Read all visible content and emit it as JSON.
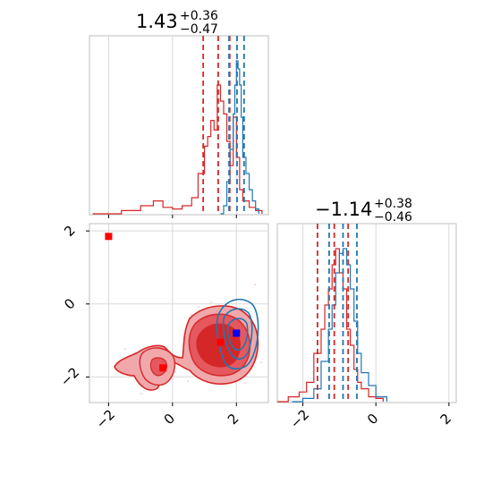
{
  "chart_data": {
    "type": "corner",
    "colors": {
      "red": "#d62728",
      "blue": "#1f77b4",
      "red_marker": "#ff0000",
      "blue_marker": "#0000ff"
    },
    "grid": true,
    "params": [
      {
        "title_main": "1.43",
        "title_plus": "+0.36",
        "title_minus": "−0.47",
        "median": 1.43,
        "lower": 0.96,
        "upper": 1.79,
        "blue_quantiles": [
          1.77,
          2.02,
          2.24
        ]
      },
      {
        "title_main": "−1.14",
        "title_plus": "+0.38",
        "title_minus": "−0.46",
        "median": -1.14,
        "lower": -1.6,
        "upper": -0.76,
        "blue_quantiles": [
          -1.28,
          -0.9,
          -0.52
        ]
      }
    ],
    "x_range_param1": [
      -2.6,
      3.0
    ],
    "y_range_param2": [
      -2.7,
      2.2
    ],
    "x_range_param2": [
      -2.7,
      2.2
    ],
    "ticks_param1": [
      {
        "value": -2,
        "label": "−2"
      },
      {
        "value": 0,
        "label": "0"
      },
      {
        "value": 2,
        "label": "2"
      }
    ],
    "ticks_param2": [
      {
        "value": -2,
        "label": "−2"
      },
      {
        "value": 0,
        "label": "0"
      },
      {
        "value": 2,
        "label": "2"
      }
    ],
    "red_markers_2d": [
      [
        -2.0,
        1.85
      ],
      [
        -0.3,
        -1.75
      ],
      [
        1.5,
        -1.05
      ]
    ],
    "blue_markers_2d": [
      [
        2.0,
        -0.8
      ]
    ],
    "red_hist_param1": {
      "x": [
        -2.5,
        -1.6,
        -1.0,
        -0.6,
        -0.3,
        0.0,
        0.3,
        0.6,
        0.8,
        1.0,
        1.1,
        1.2,
        1.3,
        1.4,
        1.5,
        1.6,
        1.7,
        1.8,
        1.9,
        2.0,
        2.1,
        2.2,
        2.4,
        2.6,
        2.8
      ],
      "y": [
        0.0,
        0.02,
        0.05,
        0.08,
        0.04,
        0.03,
        0.05,
        0.1,
        0.25,
        0.42,
        0.48,
        0.58,
        0.52,
        0.8,
        0.7,
        0.62,
        0.45,
        0.3,
        0.6,
        0.35,
        0.15,
        0.08,
        0.04,
        0.02,
        0.0
      ]
    },
    "blue_hist_param1": {
      "x": [
        1.5,
        1.6,
        1.7,
        1.8,
        1.9,
        1.95,
        2.0,
        2.05,
        2.1,
        2.15,
        2.2,
        2.3,
        2.4,
        2.5,
        2.6,
        2.7
      ],
      "y": [
        0.0,
        0.05,
        0.2,
        0.4,
        0.62,
        0.8,
        0.95,
        0.9,
        0.8,
        0.6,
        0.35,
        0.25,
        0.15,
        0.08,
        0.03,
        0.0
      ]
    },
    "red_hist_param2": {
      "x": [
        -2.7,
        -2.4,
        -2.1,
        -1.9,
        -1.7,
        -1.5,
        -1.4,
        -1.3,
        -1.2,
        -1.1,
        -1.0,
        -0.9,
        -0.8,
        -0.7,
        -0.6,
        -0.5,
        -0.4,
        -0.2,
        0.0,
        0.2
      ],
      "y": [
        0.0,
        0.03,
        0.06,
        0.12,
        0.3,
        0.45,
        0.6,
        0.7,
        0.85,
        0.95,
        0.8,
        0.7,
        0.45,
        0.35,
        0.2,
        0.12,
        0.08,
        0.03,
        0.02,
        0.0
      ]
    },
    "blue_hist_param2": {
      "x": [
        -2.3,
        -2.0,
        -1.7,
        -1.5,
        -1.3,
        -1.2,
        -1.1,
        -1.0,
        -0.9,
        -0.8,
        -0.7,
        -0.6,
        -0.5,
        -0.4,
        -0.2,
        0.0,
        0.3
      ],
      "y": [
        0.0,
        0.02,
        0.08,
        0.25,
        0.45,
        0.6,
        0.8,
        0.92,
        0.95,
        0.85,
        0.7,
        0.5,
        0.3,
        0.18,
        0.1,
        0.03,
        0.0
      ]
    }
  }
}
